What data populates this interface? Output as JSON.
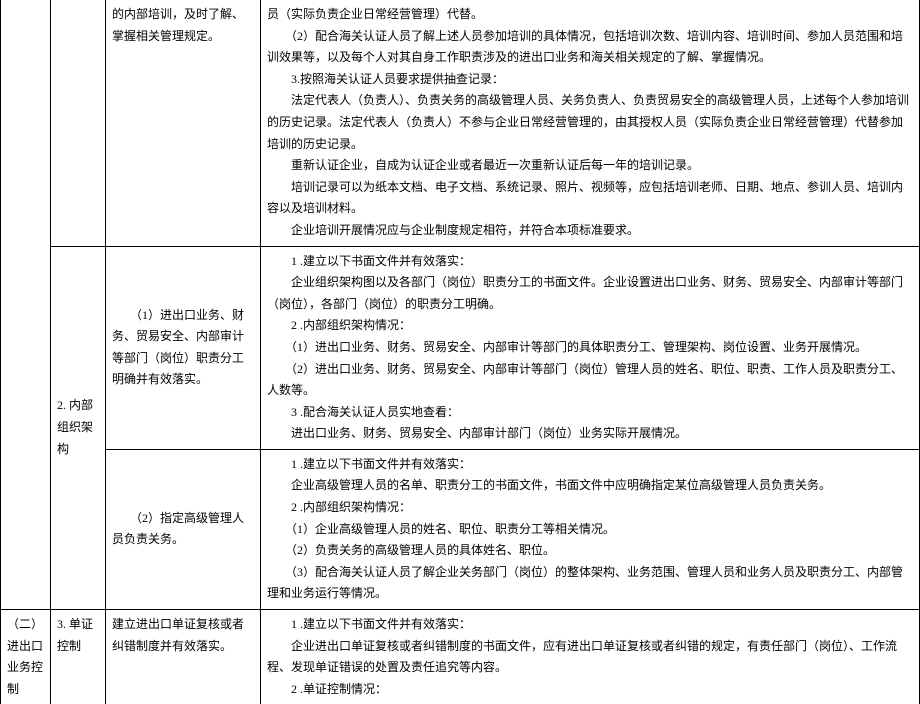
{
  "rows": [
    {
      "col1": "",
      "col2": "",
      "col3": "的内部培训，及时了解、掌握相关管理规定。",
      "col4_lines": [
        "员（实际负责企业日常经营管理）代替。",
        "　　（2）配合海关认证人员了解上述人员参加培训的具体情况，包括培训次数、培训内容、培训时间、参加人员范围和培训效果等，以及每个人对其自身工作职责涉及的进出口业务和海关相关规定的了解、掌握情况。",
        "　　3.按照海关认证人员要求提供抽查记录：",
        "　　法定代表人（负责人）、负责关务的高级管理人员、关务负责人、负责贸易安全的高级管理人员，上述每个人参加培训的历史记录。法定代表人（负责人）不参与企业日常经营管理的，由其授权人员（实际负责企业日常经营管理）代替参加培训的历史记录。",
        "　　重新认证企业，自成为认证企业或者最近一次重新认证后每一年的培训记录。",
        "　　培训记录可以为纸本文档、电子文档、系统记录、照片、视频等，应包括培训老师、日期、地点、参训人员、培训内容以及培训材料。",
        "　　企业培训开展情况应与企业制度规定相符，并符合本项标准要求。"
      ]
    },
    {
      "col1": "",
      "col2": "2. 内部组织架构",
      "col2_rowspan": 2,
      "col3": "　　（1）进出口业务、财务、贸易安全、内部审计等部门（岗位）职责分工明确并有效落实。",
      "col4_lines": [
        "　　1 .建立以下书面文件并有效落实：",
        "　　企业组织架构图以及各部门（岗位）职责分工的书面文件。企业设置进出口业务、财务、贸易安全、内部审计等部门（岗位），各部门（岗位）的职责分工明确。",
        "　　2 .内部组织架构情况：",
        "　　（1）进出口业务、财务、贸易安全、内部审计等部门的具体职责分工、管理架构、岗位设置、业务开展情况。",
        "　　（2）进出口业务、财务、贸易安全、内部审计等部门（岗位）管理人员的姓名、职位、职责、工作人员及职责分工、人数等。",
        "　　3 .配合海关认证人员实地查看：",
        "　　进出口业务、财务、贸易安全、内部审计部门（岗位）业务实际开展情况。"
      ]
    },
    {
      "col1": "",
      "col3": "　　（2）指定高级管理人员负责关务。",
      "col4_lines": [
        "　　1 .建立以下书面文件并有效落实：",
        "　　企业高级管理人员的名单、职责分工的书面文件，书面文件中应明确指定某位高级管理人员负责关务。",
        "　　2 .内部组织架构情况：",
        "　　（1）企业高级管理人员的姓名、职位、职责分工等相关情况。",
        "　　（2）负责关务的高级管理人员的具体姓名、职位。",
        "　　（3）配合海关认证人员了解企业关务部门（岗位）的整体架构、业务范围、管理人员和业务人员及职责分工、内部管理和业务运行等情况。"
      ]
    },
    {
      "col1": "（二）进出口业务控制",
      "col2": "3. 单证控制",
      "col3": "建立进出口单证复核或者纠错制度并有效落实。",
      "col4_lines": [
        "　　1 .建立以下书面文件并有效落实：",
        "　　企业进出口单证复核或者纠错制度的书面文件，应有进出口单证复核或者纠错的规定，有责任部门（岗位）、工作流程、发现单证错误的处置及责任追究等内容。",
        "　　2 .单证控制情况："
      ]
    }
  ]
}
